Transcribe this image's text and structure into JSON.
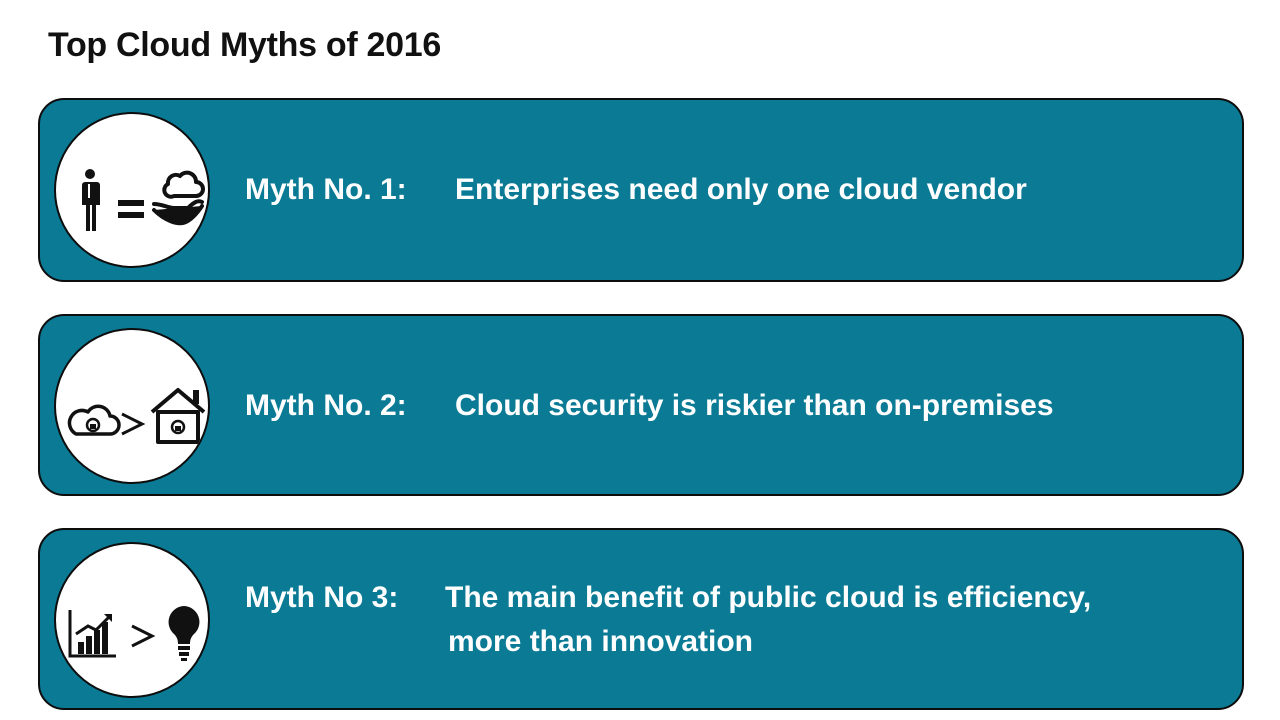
{
  "slide": {
    "title": "Top Cloud Myths of 2016"
  },
  "colors": {
    "card_fill": "#0a7a95",
    "card_border": "#0d0d0d",
    "text": "#ffffff",
    "title": "#111111"
  },
  "myths": [
    {
      "label": "Myth No. 1:",
      "text": "Enterprises need only one cloud vendor",
      "text_line2": "",
      "icons": [
        "person-icon",
        "equals-icon",
        "cloud-in-hand-icon"
      ]
    },
    {
      "label": "Myth No. 2:",
      "text": "Cloud security is riskier than on-premises",
      "text_line2": "",
      "icons": [
        "locked-cloud-icon",
        "greater-than-icon",
        "locked-house-icon"
      ]
    },
    {
      "label": "Myth No 3:",
      "text": "The main benefit of public cloud is efficiency,",
      "text_line2": "more than innovation",
      "icons": [
        "growth-chart-icon",
        "greater-than-icon",
        "lightbulb-icon"
      ]
    }
  ]
}
